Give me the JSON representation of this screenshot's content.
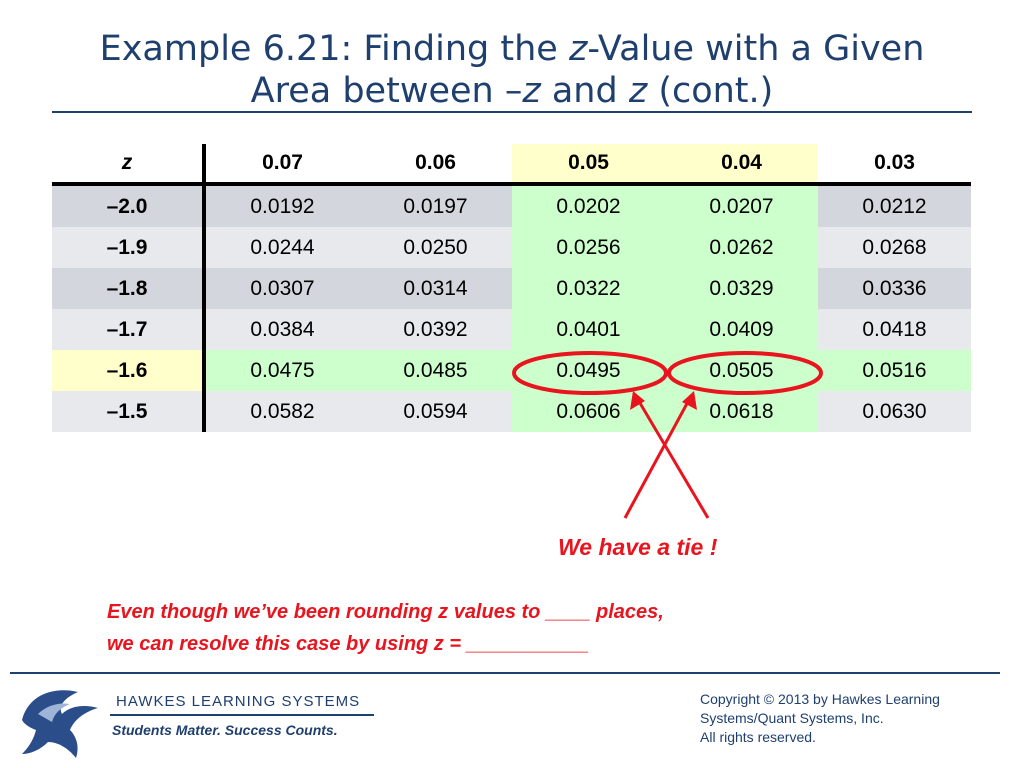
{
  "slide": {
    "title_prefix": "Example 6.21: Finding the ",
    "title_z1": "z",
    "title_mid": "-Value with a Given",
    "title_line2_prefix": "Area between –",
    "title_z2": "z",
    "title_and": " and ",
    "title_z3": "z",
    "title_suffix": " (cont.)"
  },
  "table": {
    "header": [
      "z",
      "0.07",
      "0.06",
      "0.05",
      "0.04",
      "0.03"
    ],
    "rows": [
      {
        "z": "–2.0",
        "values": [
          "0.0192",
          "0.0197",
          "0.0202",
          "0.0207",
          "0.0212"
        ]
      },
      {
        "z": "–1.9",
        "values": [
          "0.0244",
          "0.0250",
          "0.0256",
          "0.0262",
          "0.0268"
        ]
      },
      {
        "z": "–1.8",
        "values": [
          "0.0307",
          "0.0314",
          "0.0322",
          "0.0329",
          "0.0336"
        ]
      },
      {
        "z": "–1.7",
        "values": [
          "0.0384",
          "0.0392",
          "0.0401",
          "0.0409",
          "0.0418"
        ]
      },
      {
        "z": "–1.6",
        "values": [
          "0.0475",
          "0.0485",
          "0.0495",
          "0.0505",
          "0.0516"
        ]
      },
      {
        "z": "–1.5",
        "values": [
          "0.0582",
          "0.0594",
          "0.0606",
          "0.0618",
          "0.0630"
        ]
      }
    ]
  },
  "annotation": {
    "tie": "We have a tie !",
    "note_line1": "Even though we’ve been rounding z values to ____ places,",
    "note_line2": "we can resolve this case by using z = ___________"
  },
  "footer": {
    "brand": "HAWKES  LEARNING  SYSTEMS",
    "slogan": "Students Matter. Success Counts.",
    "copyright_line1": "Copyright © 2013 by Hawkes Learning",
    "copyright_line2": "Systems/Quant Systems, Inc.",
    "copyright_line3": "All rights reserved."
  },
  "colors": {
    "title": "#1f3f6e",
    "highlight_green": "#ccffcc",
    "highlight_yellow": "#ffffcc",
    "annotation_red": "#e8141e"
  }
}
